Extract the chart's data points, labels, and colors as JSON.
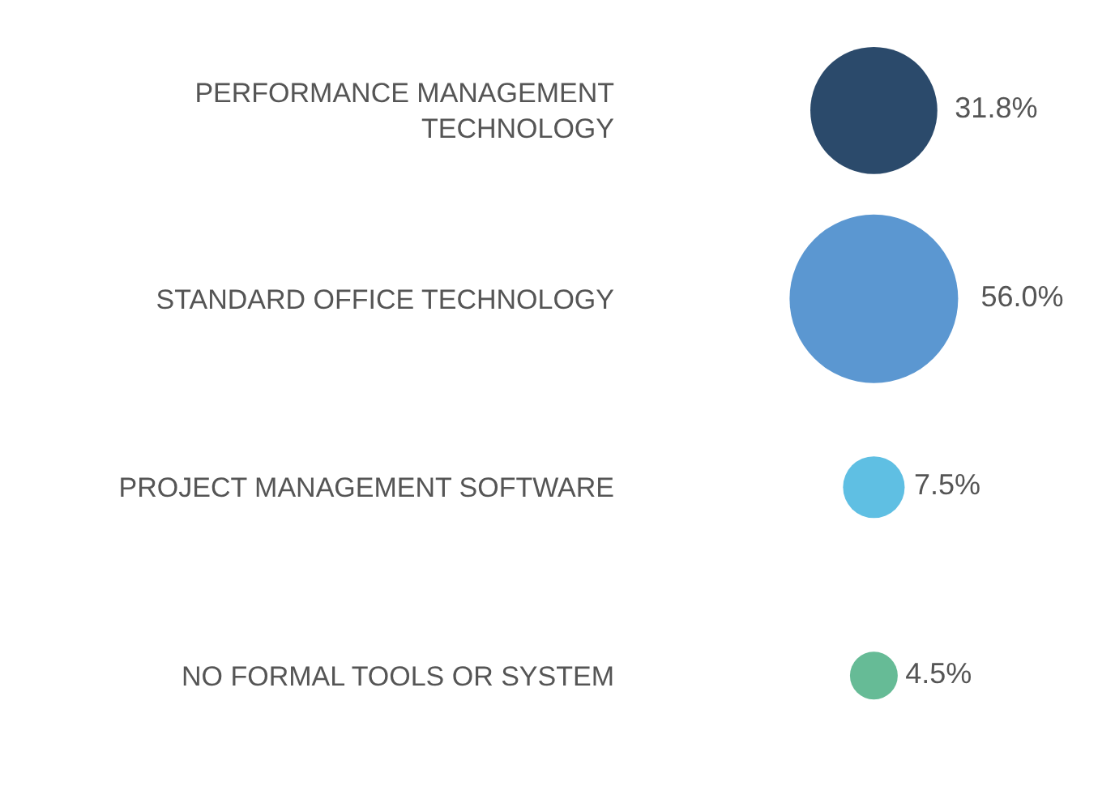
{
  "chart_data": {
    "type": "other",
    "categories": [
      "PERFORMANCE MANAGEMENT TECHNOLOGY",
      "STANDARD OFFICE TECHNOLOGY",
      "PROJECT MANAGEMENT SOFTWARE",
      "NO FORMAL TOOLS OR SYSTEM"
    ],
    "values": [
      31.8,
      56.0,
      7.5,
      4.5
    ],
    "value_labels": [
      "31.8%",
      "56.0%",
      "7.5%",
      "4.5%"
    ],
    "colors": [
      "#2b4a6b",
      "#5b97d1",
      "#5fbfe3",
      "#66bb96"
    ]
  }
}
